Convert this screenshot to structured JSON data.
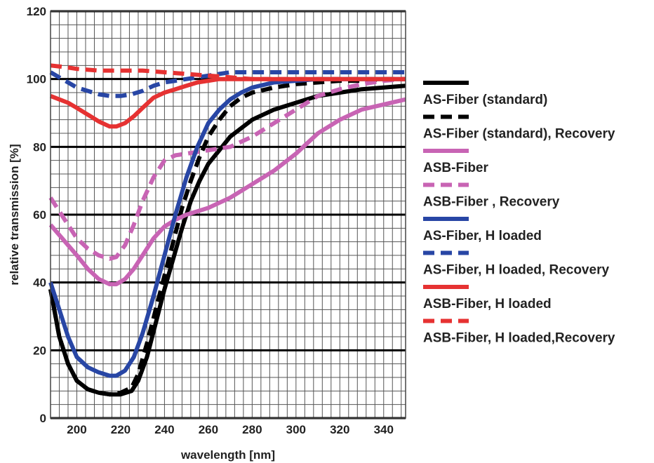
{
  "chart_data": {
    "type": "line",
    "xlabel": "wavelength [nm]",
    "ylabel": "relative transmission [%]",
    "xlim": [
      188,
      350
    ],
    "ylim": [
      0,
      120
    ],
    "x_ticks": [
      200,
      220,
      240,
      260,
      280,
      300,
      320,
      340
    ],
    "y_ticks": [
      0,
      20,
      40,
      60,
      80,
      100,
      120
    ],
    "x_minor_step": 4,
    "y_minor_step": 4,
    "grid": true,
    "legend_position": "right",
    "series": [
      {
        "name": "AS-Fiber (standard)",
        "color": "#000000",
        "dash": "solid",
        "x": [
          188,
          192,
          196,
          200,
          205,
          210,
          215,
          220,
          225,
          228,
          232,
          236,
          240,
          244,
          248,
          252,
          256,
          260,
          265,
          270,
          280,
          290,
          300,
          310,
          320,
          330,
          340,
          350
        ],
        "y": [
          38,
          24,
          16,
          11,
          8.5,
          7.5,
          7,
          7,
          8,
          11,
          18,
          28,
          38,
          47,
          56,
          64,
          70,
          75,
          79,
          83,
          88,
          91,
          93,
          95,
          96,
          97,
          97.5,
          98
        ]
      },
      {
        "name": "AS-Fiber (standard), Recovery",
        "color": "#000000",
        "dash": "dashed",
        "x": [
          188,
          192,
          196,
          200,
          205,
          210,
          215,
          220,
          225,
          228,
          232,
          236,
          240,
          244,
          248,
          252,
          256,
          260,
          265,
          270,
          275,
          280,
          290,
          300,
          310,
          320,
          330,
          340,
          350
        ],
        "y": [
          38,
          24,
          16,
          11,
          8.5,
          7.5,
          7,
          7.5,
          9,
          13,
          22,
          32,
          42,
          52,
          62,
          70,
          77,
          83,
          88,
          92,
          94.5,
          96,
          97.5,
          98.5,
          99,
          99.5,
          99.5,
          100,
          100
        ]
      },
      {
        "name": "ASB-Fiber",
        "color": "#c864b4",
        "dash": "solid",
        "x": [
          188,
          192,
          196,
          200,
          205,
          210,
          215,
          218,
          222,
          226,
          230,
          235,
          240,
          245,
          250,
          255,
          260,
          270,
          280,
          290,
          300,
          310,
          320,
          330,
          340,
          350
        ],
        "y": [
          57,
          54,
          51,
          48,
          44,
          41,
          39.5,
          39.5,
          41,
          44,
          48,
          53,
          56.5,
          58.5,
          60,
          61,
          62,
          65,
          69,
          73,
          78,
          84,
          88,
          91,
          92.5,
          94
        ]
      },
      {
        "name": "ASB-Fiber , Recovery",
        "color": "#c864b4",
        "dash": "dashed",
        "x": [
          188,
          192,
          196,
          200,
          205,
          210,
          215,
          218,
          222,
          226,
          230,
          235,
          240,
          245,
          250,
          255,
          260,
          270,
          280,
          290,
          300,
          310,
          320,
          330,
          340,
          350
        ],
        "y": [
          65,
          61,
          57,
          53,
          50,
          48,
          47,
          47.5,
          51,
          57,
          64,
          71,
          76,
          77.5,
          78,
          78.5,
          79,
          80,
          83,
          87,
          91,
          95,
          97,
          98.5,
          99.5,
          100
        ]
      },
      {
        "name": "AS-Fiber, H loaded",
        "color": "#2846a5",
        "dash": "solid",
        "x": [
          188,
          192,
          196,
          200,
          205,
          210,
          215,
          218,
          222,
          226,
          230,
          235,
          240,
          245,
          250,
          255,
          260,
          265,
          270,
          275,
          280,
          290,
          300,
          310,
          320,
          340,
          350
        ],
        "y": [
          40,
          32,
          24,
          18,
          15,
          13.5,
          12.5,
          12.5,
          14,
          18,
          25,
          36,
          48,
          60,
          71,
          80,
          87,
          91,
          94,
          96,
          97.5,
          99,
          99.5,
          100,
          100,
          100,
          100
        ]
      },
      {
        "name": "AS-Fiber, H loaded, Recovery",
        "color": "#2846a5",
        "dash": "dashed",
        "x": [
          188,
          192,
          196,
          200,
          205,
          210,
          215,
          220,
          225,
          230,
          235,
          240,
          245,
          250,
          255,
          260,
          265,
          270,
          280,
          300,
          320,
          340,
          350
        ],
        "y": [
          102,
          100.5,
          99,
          97.5,
          96.5,
          95.5,
          95,
          95,
          95.5,
          96.5,
          98,
          99,
          99.5,
          100,
          100.5,
          101,
          101.5,
          102,
          102,
          102,
          102,
          102,
          102
        ]
      },
      {
        "name": "ASB-Fiber, H loaded",
        "color": "#e63232",
        "dash": "solid",
        "x": [
          188,
          192,
          196,
          200,
          205,
          210,
          215,
          218,
          222,
          226,
          230,
          235,
          240,
          245,
          250,
          255,
          260,
          265,
          270,
          280,
          290,
          300,
          320,
          340,
          350
        ],
        "y": [
          95,
          94,
          93,
          91.5,
          89.5,
          87.5,
          86,
          86,
          87,
          89,
          91.5,
          94.5,
          96,
          97,
          98,
          99,
          99.5,
          100,
          100,
          100,
          100,
          100,
          100,
          100,
          100
        ]
      },
      {
        "name": "ASB-Fiber, H loaded,Recovery",
        "color": "#e63232",
        "dash": "dashed",
        "x": [
          188,
          195,
          200,
          210,
          220,
          230,
          240,
          250,
          260,
          270,
          280,
          290,
          300,
          320,
          340,
          350
        ],
        "y": [
          104,
          103.5,
          103,
          102.5,
          102.5,
          102.5,
          102,
          101.5,
          101,
          100.5,
          100,
          100,
          100,
          100,
          100,
          100
        ]
      }
    ]
  }
}
